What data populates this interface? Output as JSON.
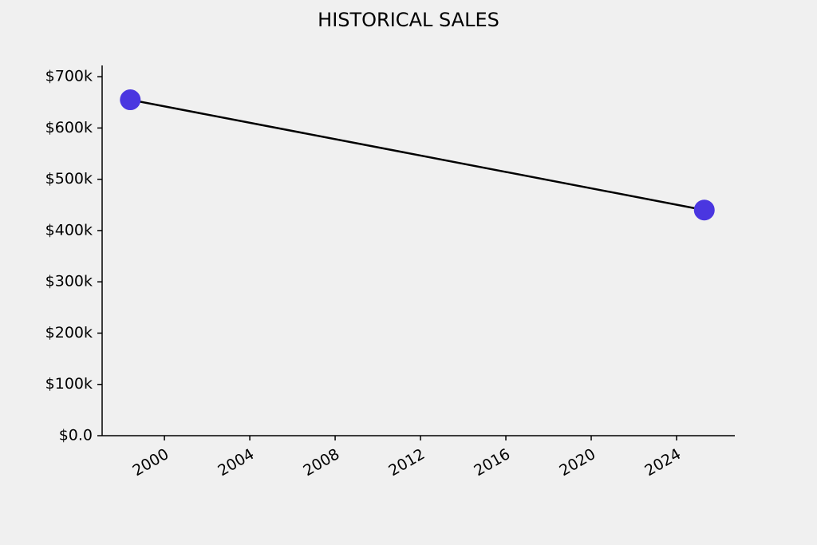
{
  "chart_data": {
    "type": "line",
    "title": "HISTORICAL SALES",
    "x": [
      1998.4,
      2025.3
    ],
    "values": [
      655000,
      440000
    ],
    "line_color": "#000000",
    "marker_color": "#4a36e0",
    "xlim": [
      1997.08,
      2026.73
    ],
    "xticks": [
      2000,
      2004,
      2008,
      2012,
      2016,
      2020,
      2024
    ],
    "ylim": [
      0,
      722000
    ],
    "yticks": [
      {
        "value": 0,
        "label": "$0.0"
      },
      {
        "value": 100000,
        "label": "$100k"
      },
      {
        "value": 200000,
        "label": "$200k"
      },
      {
        "value": 300000,
        "label": "$300k"
      },
      {
        "value": 400000,
        "label": "$400k"
      },
      {
        "value": 500000,
        "label": "$500k"
      },
      {
        "value": 600000,
        "label": "$600k"
      },
      {
        "value": 700000,
        "label": "$700k"
      }
    ],
    "grid": false
  }
}
